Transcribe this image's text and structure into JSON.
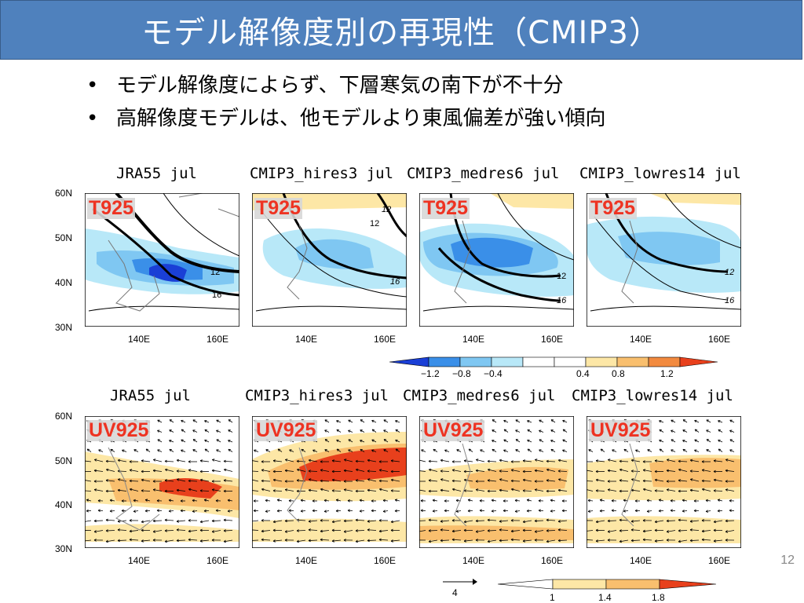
{
  "slide": {
    "title": "モデル解像度別の再現性（CMIP3）",
    "bullets": [
      "モデル解像度によらず、下層寒気の南下が不十分",
      "高解像度モデルは、他モデルより東風偏差が強い傾向"
    ],
    "page_number": "12"
  },
  "top_row": {
    "variable_label": "T925",
    "panels": [
      {
        "title": "JRA55  jul"
      },
      {
        "title": "CMIP3_hires3  jul"
      },
      {
        "title": "CMIP3_medres6  jul"
      },
      {
        "title": "CMIP3_lowres14  jul"
      }
    ],
    "yticks": [
      "60N",
      "50N",
      "40N",
      "30N"
    ],
    "xticks": [
      "140E",
      "160E"
    ],
    "contour_labels": [
      "12",
      "16"
    ],
    "colorbar": {
      "ticks": [
        "−1.2",
        "−0.8",
        "−0.4",
        "0.4",
        "0.8",
        "1.2"
      ],
      "colors": [
        "#1a3fd6",
        "#3a8fe8",
        "#7fc7f2",
        "#b8e8f8",
        "#ffffff",
        "#fde7a6",
        "#f9bf6e",
        "#f28a3f",
        "#e8401c"
      ]
    }
  },
  "bottom_row": {
    "variable_label": "UV925",
    "panels": [
      {
        "title": "JRA55   jul"
      },
      {
        "title": "CMIP3_hires3   jul"
      },
      {
        "title": "CMIP3_medres6   jul"
      },
      {
        "title": "CMIP3_lowres14   jul"
      }
    ],
    "yticks": [
      "60N",
      "50N",
      "40N",
      "30N"
    ],
    "xticks": [
      "140E",
      "160E"
    ],
    "vector_scale_label": "4",
    "colorbar": {
      "ticks": [
        "1",
        "1.4",
        "1.8"
      ],
      "colors": [
        "#ffffff",
        "#fde7a6",
        "#f9bf6e",
        "#e8401c"
      ]
    }
  }
}
